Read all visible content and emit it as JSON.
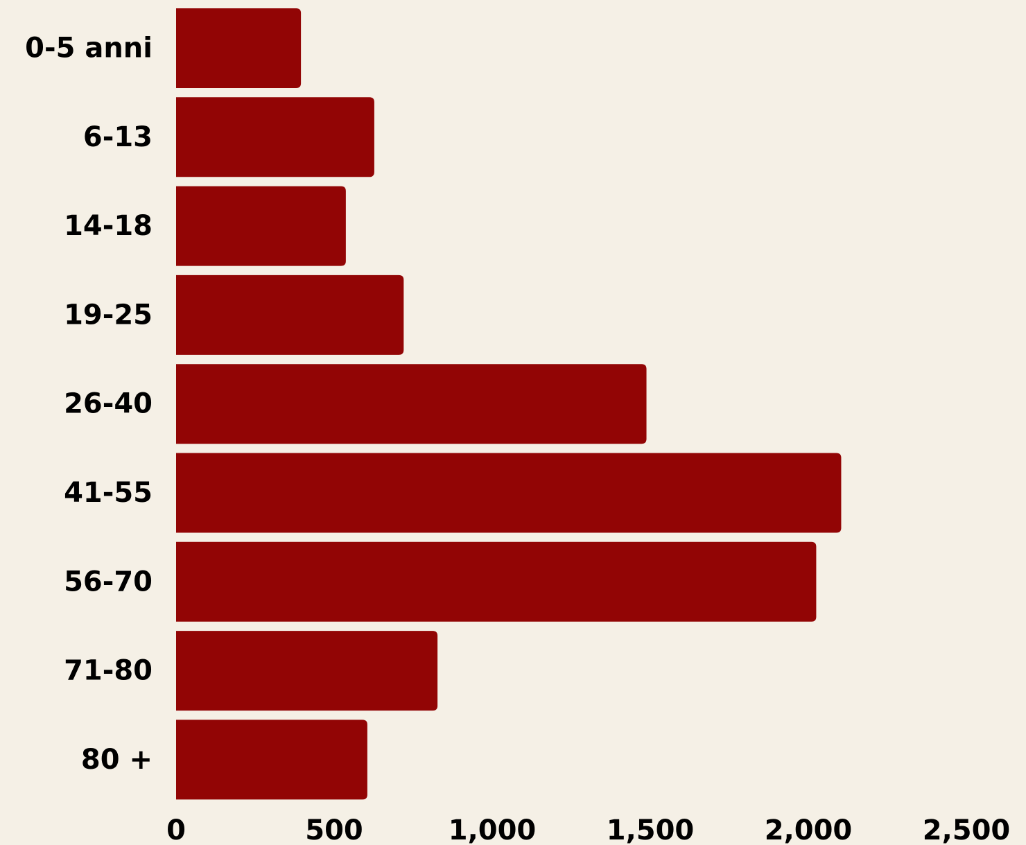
{
  "chart_data": {
    "type": "bar",
    "orientation": "horizontal",
    "categories": [
      "0-5 anni",
      "6-13",
      "14-18",
      "19-25",
      "26-40",
      "41-55",
      "56-70",
      "71-80",
      "80 +"
    ],
    "values": [
      395,
      627,
      537,
      720,
      1488,
      2104,
      2025,
      827,
      605
    ],
    "xlim": [
      0,
      2500
    ],
    "xticks": [
      "0",
      "500",
      "1,000",
      "1,500",
      "2,000",
      "2,500"
    ],
    "title": "",
    "xlabel": "",
    "ylabel": "",
    "grid": false,
    "legend": "none",
    "bar_color": "#920505",
    "background_color": "#f5f0e6"
  }
}
